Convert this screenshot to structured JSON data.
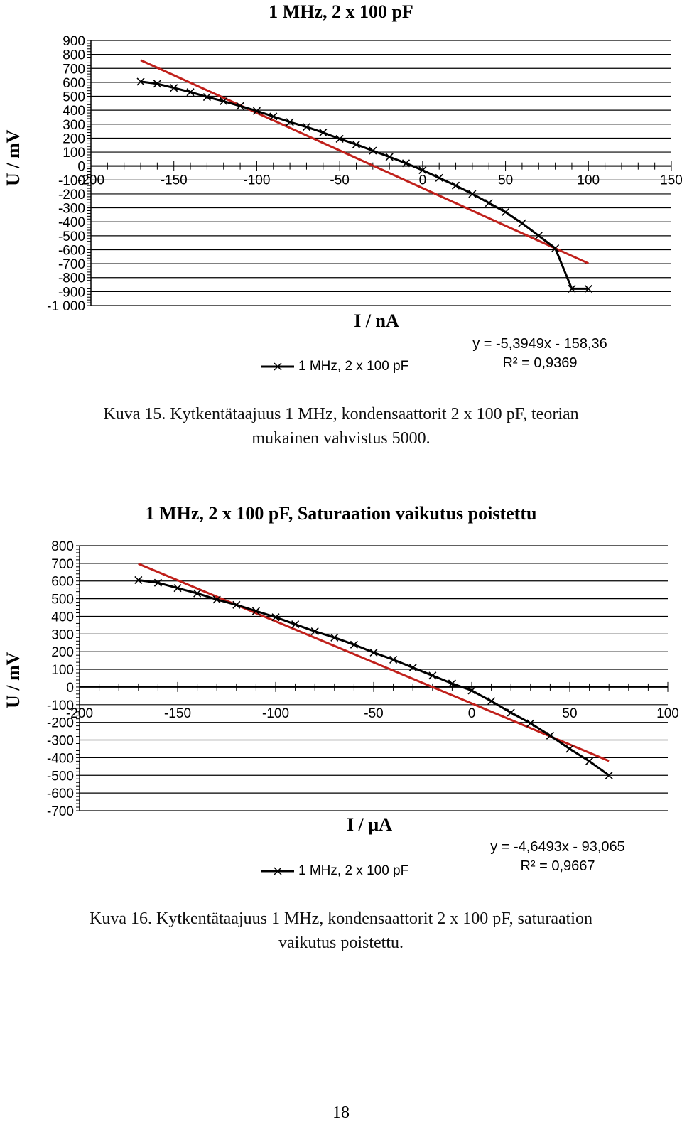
{
  "chart_data": [
    {
      "type": "line",
      "title": "1 MHz, 2 x 100 pF",
      "xlabel": "I / nA",
      "ylabel": "U / mV",
      "xlim": [
        -200,
        150
      ],
      "ylim": [
        -1000,
        900
      ],
      "yticks": [
        "900",
        "800",
        "700",
        "600",
        "500",
        "400",
        "300",
        "200",
        "100",
        "0",
        "-100",
        "-200",
        "-300",
        "-400",
        "-500",
        "-600",
        "-700",
        "-800",
        "-900",
        "-1 000"
      ],
      "xticks": [
        "-200",
        "-150",
        "-100",
        "-50",
        "0",
        "50",
        "100",
        "150"
      ],
      "grid": true,
      "legend_position": "bottom",
      "series": [
        {
          "name": "1 MHz, 2 x 100 pF",
          "color": "#000000",
          "marker": "x",
          "x": [
            -170,
            -160,
            -150,
            -140,
            -130,
            -120,
            -110,
            -100,
            -90,
            -80,
            -70,
            -60,
            -50,
            -40,
            -30,
            -20,
            -10,
            0,
            10,
            20,
            30,
            40,
            50,
            60,
            70,
            80,
            90,
            100
          ],
          "y": [
            605,
            590,
            560,
            530,
            495,
            465,
            430,
            395,
            355,
            315,
            280,
            240,
            195,
            155,
            110,
            65,
            20,
            -30,
            -85,
            -140,
            -200,
            -265,
            -330,
            -410,
            -500,
            -590,
            -880,
            -880
          ]
        }
      ],
      "trendline": {
        "color": "#c0201b",
        "slope": -5.3949,
        "intercept": -158.36,
        "x_range": [
          -170,
          100
        ]
      },
      "equation": "y = -5,3949x - 158,36",
      "r2": "R² = 0,9369"
    },
    {
      "type": "line",
      "title": "1 MHz, 2 x 100 pF, Saturaation vaikutus poistettu",
      "xlabel": "I / µA",
      "ylabel": "U / mV",
      "xlim": [
        -200,
        100
      ],
      "ylim": [
        -700,
        800
      ],
      "yticks": [
        "800",
        "700",
        "600",
        "500",
        "400",
        "300",
        "200",
        "100",
        "0",
        "-100",
        "-200",
        "-300",
        "-400",
        "-500",
        "-600",
        "-700"
      ],
      "xticks": [
        "-200",
        "-150",
        "-100",
        "-50",
        "0",
        "50",
        "100"
      ],
      "grid": true,
      "legend_position": "bottom",
      "series": [
        {
          "name": "1 MHz, 2 x 100 pF",
          "color": "#000000",
          "marker": "x",
          "x": [
            -170,
            -160,
            -150,
            -140,
            -130,
            -120,
            -110,
            -100,
            -90,
            -80,
            -70,
            -60,
            -50,
            -40,
            -30,
            -20,
            -10,
            0,
            10,
            20,
            30,
            40,
            50,
            60,
            70
          ],
          "y": [
            605,
            590,
            560,
            530,
            495,
            465,
            430,
            395,
            355,
            315,
            280,
            240,
            195,
            155,
            110,
            65,
            20,
            -20,
            -80,
            -145,
            -205,
            -275,
            -350,
            -420,
            -500
          ]
        }
      ],
      "trendline": {
        "color": "#c0201b",
        "slope": -4.6493,
        "intercept": -93.065,
        "x_range": [
          -170,
          70
        ]
      },
      "equation": "y = -4,6493x - 93,065",
      "r2": "R² = 0,9667"
    }
  ],
  "captions": {
    "fig15_line1": "Kuva 15. Kytkentätaajuus 1 MHz, kondensaattorit 2 x 100 pF, teorian",
    "fig15_line2": "mukainen vahvistus 5000.",
    "fig16_line1": "Kuva 16. Kytkentätaajuus 1 MHz, kondensaattorit 2 x 100 pF, saturaation",
    "fig16_line2": "vaikutus poistettu."
  },
  "page_number": "18"
}
